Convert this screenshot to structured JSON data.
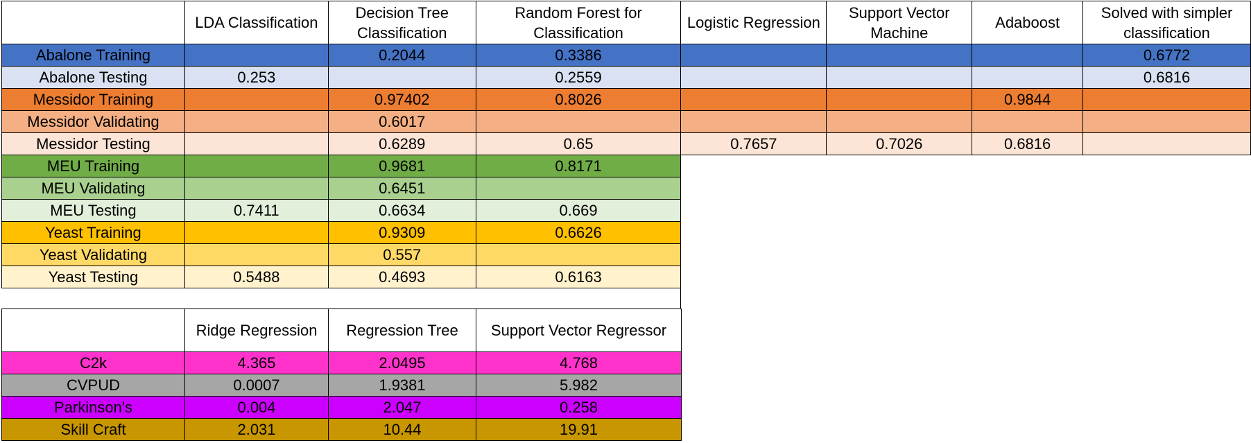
{
  "classification": {
    "headers": [
      "",
      "LDA Classification",
      "Decision Tree Classification",
      "Random Forest for Classification",
      "Logistic Regression",
      "Support Vector Machine",
      "Adaboost",
      "Solved with simpler classification"
    ],
    "rows": [
      {
        "label": "Abalone Training",
        "color": "#4472C4",
        "cells": [
          "",
          "0.2044",
          "0.3386",
          "",
          "",
          "",
          "0.6772"
        ]
      },
      {
        "label": "Abalone Testing",
        "color": "#D9E1F2",
        "cells": [
          "0.253",
          "",
          "0.2559",
          "",
          "",
          "",
          "0.6816"
        ]
      },
      {
        "label": "Messidor Training",
        "color": "#ED7D31",
        "cells": [
          "",
          "0.97402",
          "0.8026",
          "",
          "",
          "0.9844",
          ""
        ]
      },
      {
        "label": "Messidor Validating",
        "color": "#F4B084",
        "cells": [
          "",
          "0.6017",
          "",
          "",
          "",
          "",
          ""
        ]
      },
      {
        "label": "Messidor Testing",
        "color": "#FCE4D6",
        "cells": [
          "",
          "0.6289",
          "0.65",
          "0.7657",
          "0.7026",
          "0.6816",
          ""
        ]
      },
      {
        "label": "MEU Training",
        "color": "#70AD47",
        "cells": [
          "",
          "0.9681",
          "0.8171"
        ]
      },
      {
        "label": "MEU Validating",
        "color": "#A9D08E",
        "cells": [
          "",
          "0.6451",
          ""
        ]
      },
      {
        "label": "MEU Testing",
        "color": "#E2EFDA",
        "cells": [
          "0.7411",
          "0.6634",
          "0.669"
        ]
      },
      {
        "label": "Yeast Training",
        "color": "#FFC000",
        "cells": [
          "",
          "0.9309",
          "0.6626"
        ]
      },
      {
        "label": "Yeast Validating",
        "color": "#FFD966",
        "cells": [
          "",
          "0.557",
          ""
        ]
      },
      {
        "label": "Yeast Testing",
        "color": "#FFF2CC",
        "cells": [
          "0.5488",
          "0.4693",
          "0.6163"
        ]
      }
    ]
  },
  "regression": {
    "headers": [
      "",
      "Ridge Regression",
      "Regression Tree",
      "Support Vector Regressor"
    ],
    "rows": [
      {
        "label": "C2k",
        "color": "#FF33CC",
        "cells": [
          "4.365",
          "2.0495",
          "4.768"
        ]
      },
      {
        "label": "CVPUD",
        "color": "#A6A6A6",
        "cells": [
          "0.0007",
          "1.9381",
          "5.982"
        ]
      },
      {
        "label": "Parkinson's",
        "color": "#CC00FF",
        "cells": [
          "0.004",
          "2.047",
          "0.258"
        ]
      },
      {
        "label": "Skill Craft",
        "color": "#C89600",
        "cells": [
          "2.031",
          "10.44",
          "19.91"
        ]
      }
    ]
  }
}
